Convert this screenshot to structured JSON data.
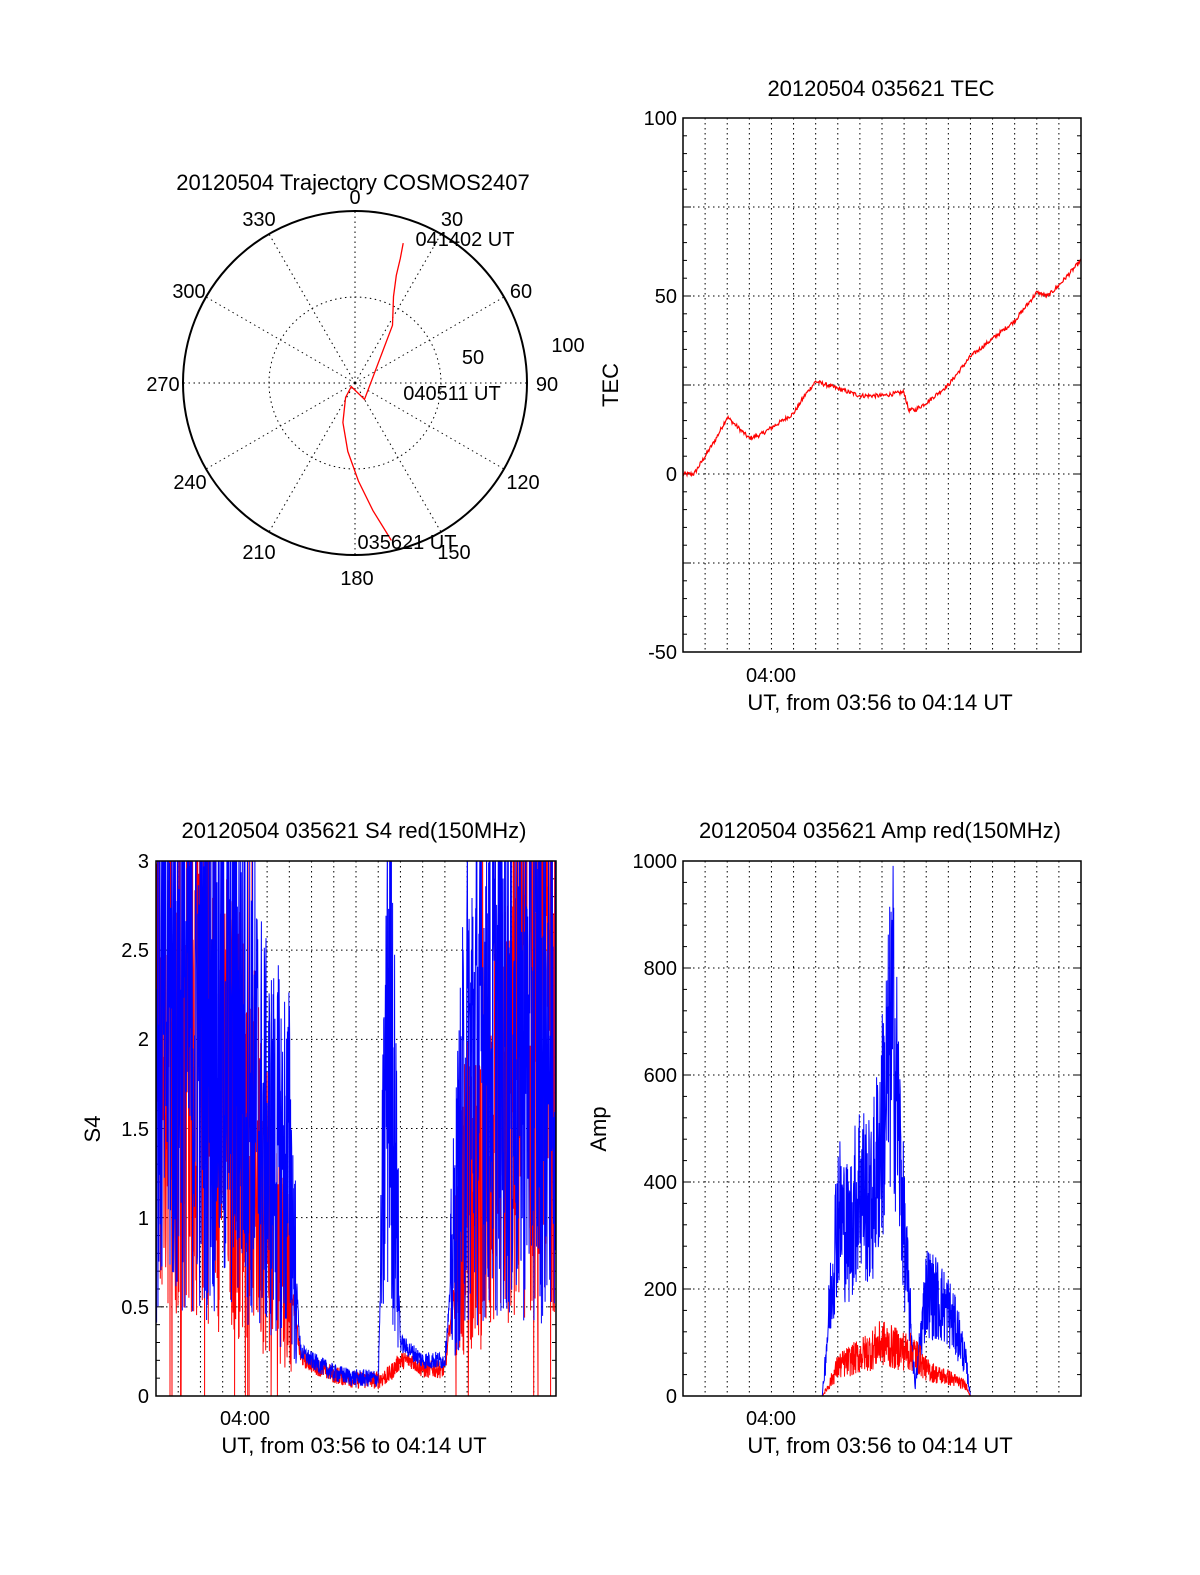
{
  "colors": {
    "red": "#ff0000",
    "blue": "#0000ff",
    "axis": "#000000"
  },
  "chart_data": [
    {
      "id": "trajectory",
      "type": "scatter",
      "projection": "polar",
      "title": "20120504 Trajectory COSMOS2407",
      "azimuth_labels": [
        "0",
        "30",
        "60",
        "90",
        "120",
        "150",
        "180",
        "210",
        "240",
        "270",
        "300",
        "330"
      ],
      "radius_labels": [
        "50",
        "100"
      ],
      "rlim": [
        0,
        100
      ],
      "series": [
        {
          "color": "red",
          "azimuth_deg": [
            167,
            172,
            178,
            186,
            197,
            213,
            226,
            150,
            33,
            24,
            21,
            20,
            19
          ],
          "radius": [
            94,
            75,
            57,
            40,
            24,
            10,
            3,
            11,
            40,
            55,
            67,
            77,
            86
          ]
        }
      ],
      "annotations": [
        "041402 UT",
        "040511 UT",
        "035621 UT"
      ]
    },
    {
      "id": "tec",
      "type": "line",
      "title": "20120504 035621 TEC",
      "xlabel": "UT, from 03:56 to 04:14 UT",
      "ylabel": "TEC",
      "x_tick_label": "04:00",
      "xlim_minutes": [
        0,
        18
      ],
      "ylim": [
        -50,
        100
      ],
      "y_ticks": [
        "100",
        "50",
        "0",
        "-50"
      ],
      "grid": true,
      "series": [
        {
          "color": "red",
          "x_minutes": [
            0,
            0.5,
            1,
            1.5,
            2,
            2.5,
            3,
            3.5,
            4,
            5,
            5.5,
            6,
            6.5,
            7,
            8,
            9,
            10,
            10.2,
            10.5,
            11,
            12,
            13,
            14,
            15,
            16,
            16.5,
            17,
            18
          ],
          "y": [
            0,
            0,
            5,
            10,
            16,
            13,
            10,
            11,
            13,
            17,
            22,
            26,
            25,
            24,
            22,
            22,
            23,
            18,
            18,
            20,
            25,
            33,
            38,
            43,
            51,
            50,
            53,
            60
          ]
        }
      ]
    },
    {
      "id": "s4",
      "type": "line",
      "title": "20120504 035621 S4 red(150MHz)",
      "xlabel": "UT, from 03:56 to 04:14 UT",
      "ylabel": "S4",
      "x_tick_label": "04:00",
      "xlim_minutes": [
        0,
        18
      ],
      "ylim": [
        0,
        3
      ],
      "y_ticks": [
        "3",
        "2.5",
        "2",
        "1.5",
        "1",
        "0.5",
        "0"
      ],
      "grid": true,
      "series": [
        {
          "color": "red",
          "x_minutes": [
            0,
            1,
            2,
            3,
            4,
            5,
            6,
            6.5,
            7,
            8,
            9,
            10,
            10.5,
            11,
            11.5,
            12,
            13,
            14,
            15,
            16,
            17,
            18
          ],
          "y": [
            2.2,
            2.1,
            2.0,
            1.7,
            1.5,
            1.1,
            0.7,
            0.22,
            0.18,
            0.12,
            0.09,
            0.09,
            0.12,
            0.2,
            0.2,
            0.15,
            0.15,
            1.2,
            1.3,
            1.7,
            2.1,
            2.3
          ]
        },
        {
          "color": "blue",
          "x_minutes": [
            0,
            1,
            2,
            3,
            4,
            5,
            6,
            6.5,
            7,
            8,
            9,
            10,
            10.5,
            11,
            11.5,
            12,
            13,
            14,
            15,
            16,
            17,
            18
          ],
          "y": [
            2.0,
            2.2,
            2.1,
            2.1,
            2.0,
            1.4,
            1.3,
            0.25,
            0.2,
            0.13,
            0.1,
            0.1,
            2.5,
            0.3,
            0.25,
            0.2,
            0.2,
            1.8,
            2.1,
            1.9,
            2.0,
            1.9
          ]
        }
      ]
    },
    {
      "id": "amp",
      "type": "line",
      "title": "20120504 035621 Amp red(150MHz)",
      "xlabel": "UT, from 03:56 to 04:14 UT",
      "ylabel": "Amp",
      "x_tick_label": "04:00",
      "xlim_minutes": [
        0,
        18
      ],
      "ylim": [
        0,
        1000
      ],
      "y_ticks": [
        "1000",
        "800",
        "600",
        "400",
        "200",
        "0"
      ],
      "grid": true,
      "series": [
        {
          "color": "red",
          "x_minutes": [
            0,
            6.3,
            6.6,
            7,
            7.5,
            8,
            8.5,
            9,
            9.5,
            10,
            10.5,
            11,
            11.5,
            12,
            12.8,
            13,
            18
          ],
          "y": [
            0,
            0,
            20,
            55,
            65,
            75,
            85,
            100,
            90,
            85,
            80,
            50,
            40,
            35,
            20,
            0,
            0
          ]
        },
        {
          "color": "blue",
          "x_minutes": [
            0,
            6.3,
            6.6,
            7,
            7.5,
            8,
            8.5,
            9,
            9.5,
            10,
            10.5,
            11,
            11.5,
            12,
            12.5,
            12.8,
            13,
            18
          ],
          "y": [
            0,
            0,
            150,
            350,
            300,
            400,
            350,
            500,
            700,
            300,
            20,
            200,
            180,
            160,
            110,
            60,
            0,
            0
          ]
        }
      ]
    }
  ]
}
